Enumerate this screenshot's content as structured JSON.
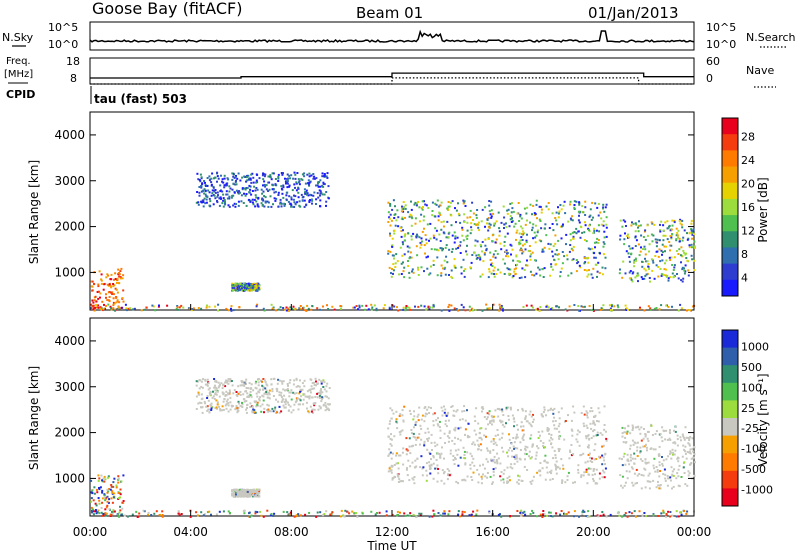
{
  "header": {
    "station": "Goose Bay (fitACF)",
    "beam": "Beam 01",
    "date": "01/Jan/2013"
  },
  "top_panels": {
    "nsky_label": "N.Sky",
    "nsearch_label": "N.Search",
    "noise_ticks": [
      "10^5",
      "10^0"
    ],
    "freq_label_1": "Freq.",
    "freq_label_2": "[MHz]",
    "freq_ticks": [
      "18",
      "8"
    ],
    "nave_label": "Nave",
    "nave_ticks": [
      "60",
      "0"
    ],
    "cpid_label": "CPID",
    "cpid_text": "tau (fast) 503"
  },
  "colorbars": {
    "power": {
      "label": "Power [dB]",
      "ticks": [
        "28",
        "24",
        "20",
        "16",
        "12",
        "8",
        "4"
      ],
      "colors": [
        "#e8001c",
        "#f53c0f",
        "#ff7b00",
        "#f5a000",
        "#e6d200",
        "#9cdc3c",
        "#4fbf4f",
        "#2f8f6f",
        "#2f6fb0",
        "#2f3cd0",
        "#1a1aff"
      ]
    },
    "velocity": {
      "label": "Velocity [m s⁻¹]",
      "ticks": [
        "1000",
        "500",
        "100",
        "25",
        "-25",
        "-100",
        "-500",
        "-1000"
      ],
      "colors": [
        "#1a2ad8",
        "#2f5faa",
        "#2f8f6f",
        "#4fbf4f",
        "#9cdc3c",
        "#c8c8c0",
        "#f5a000",
        "#ff7b00",
        "#f53c0f",
        "#e8001c"
      ]
    }
  },
  "chart_data": {
    "type": "heatmap",
    "x": {
      "label": "Time UT",
      "ticks": [
        "00:00",
        "04:00",
        "08:00",
        "12:00",
        "16:00",
        "20:00",
        "00:00"
      ],
      "range_hours": [
        0,
        24
      ]
    },
    "y": {
      "label": "Slant Range [km]",
      "ticks": [
        "4000",
        "3000",
        "2000",
        "1000"
      ],
      "range_km": [
        180,
        4500
      ]
    },
    "panels": [
      {
        "name": "power",
        "scatter_regions": [
          {
            "t0": 0.0,
            "t1": 1.3,
            "r0": 200,
            "r1": 1100,
            "level": "high"
          },
          {
            "t0": 4.2,
            "t1": 9.5,
            "r0": 2450,
            "r1": 3200,
            "level": "low"
          },
          {
            "t0": 5.6,
            "t1": 6.7,
            "r0": 620,
            "r1": 780,
            "level": "mid"
          },
          {
            "t0": 11.8,
            "t1": 20.5,
            "r0": 900,
            "r1": 2600,
            "level": "mid"
          },
          {
            "t0": 21.0,
            "t1": 24.0,
            "r0": 800,
            "r1": 2200,
            "level": "mid"
          },
          {
            "t0": 0.0,
            "t1": 24.0,
            "r0": 180,
            "r1": 320,
            "level": "mixed"
          }
        ]
      },
      {
        "name": "velocity",
        "scatter_regions": [
          {
            "t0": 0.0,
            "t1": 1.3,
            "r0": 200,
            "r1": 1100,
            "level": "mixed"
          },
          {
            "t0": 4.2,
            "t1": 9.5,
            "r0": 2450,
            "r1": 3200,
            "level": "ground"
          },
          {
            "t0": 5.6,
            "t1": 6.7,
            "r0": 620,
            "r1": 780,
            "level": "ground"
          },
          {
            "t0": 11.8,
            "t1": 20.5,
            "r0": 900,
            "r1": 2600,
            "level": "ground"
          },
          {
            "t0": 21.0,
            "t1": 24.0,
            "r0": 800,
            "r1": 2200,
            "level": "ground"
          },
          {
            "t0": 0.0,
            "t1": 24.0,
            "r0": 180,
            "r1": 320,
            "level": "mixed"
          }
        ]
      }
    ],
    "frequency_mhz": [
      {
        "t0": 0,
        "t1": 6,
        "value": 10.3
      },
      {
        "t0": 6,
        "t1": 12,
        "value": 10.8
      },
      {
        "t0": 12,
        "t1": 22,
        "value": 12.2
      },
      {
        "t0": 22,
        "t1": 24,
        "value": 10.8
      }
    ],
    "nave": [
      {
        "t0": 0,
        "t1": 12,
        "value": 0
      },
      {
        "t0": 12,
        "t1": 21.8,
        "value": 14
      },
      {
        "t0": 21.8,
        "t1": 24,
        "value": 0
      }
    ]
  }
}
